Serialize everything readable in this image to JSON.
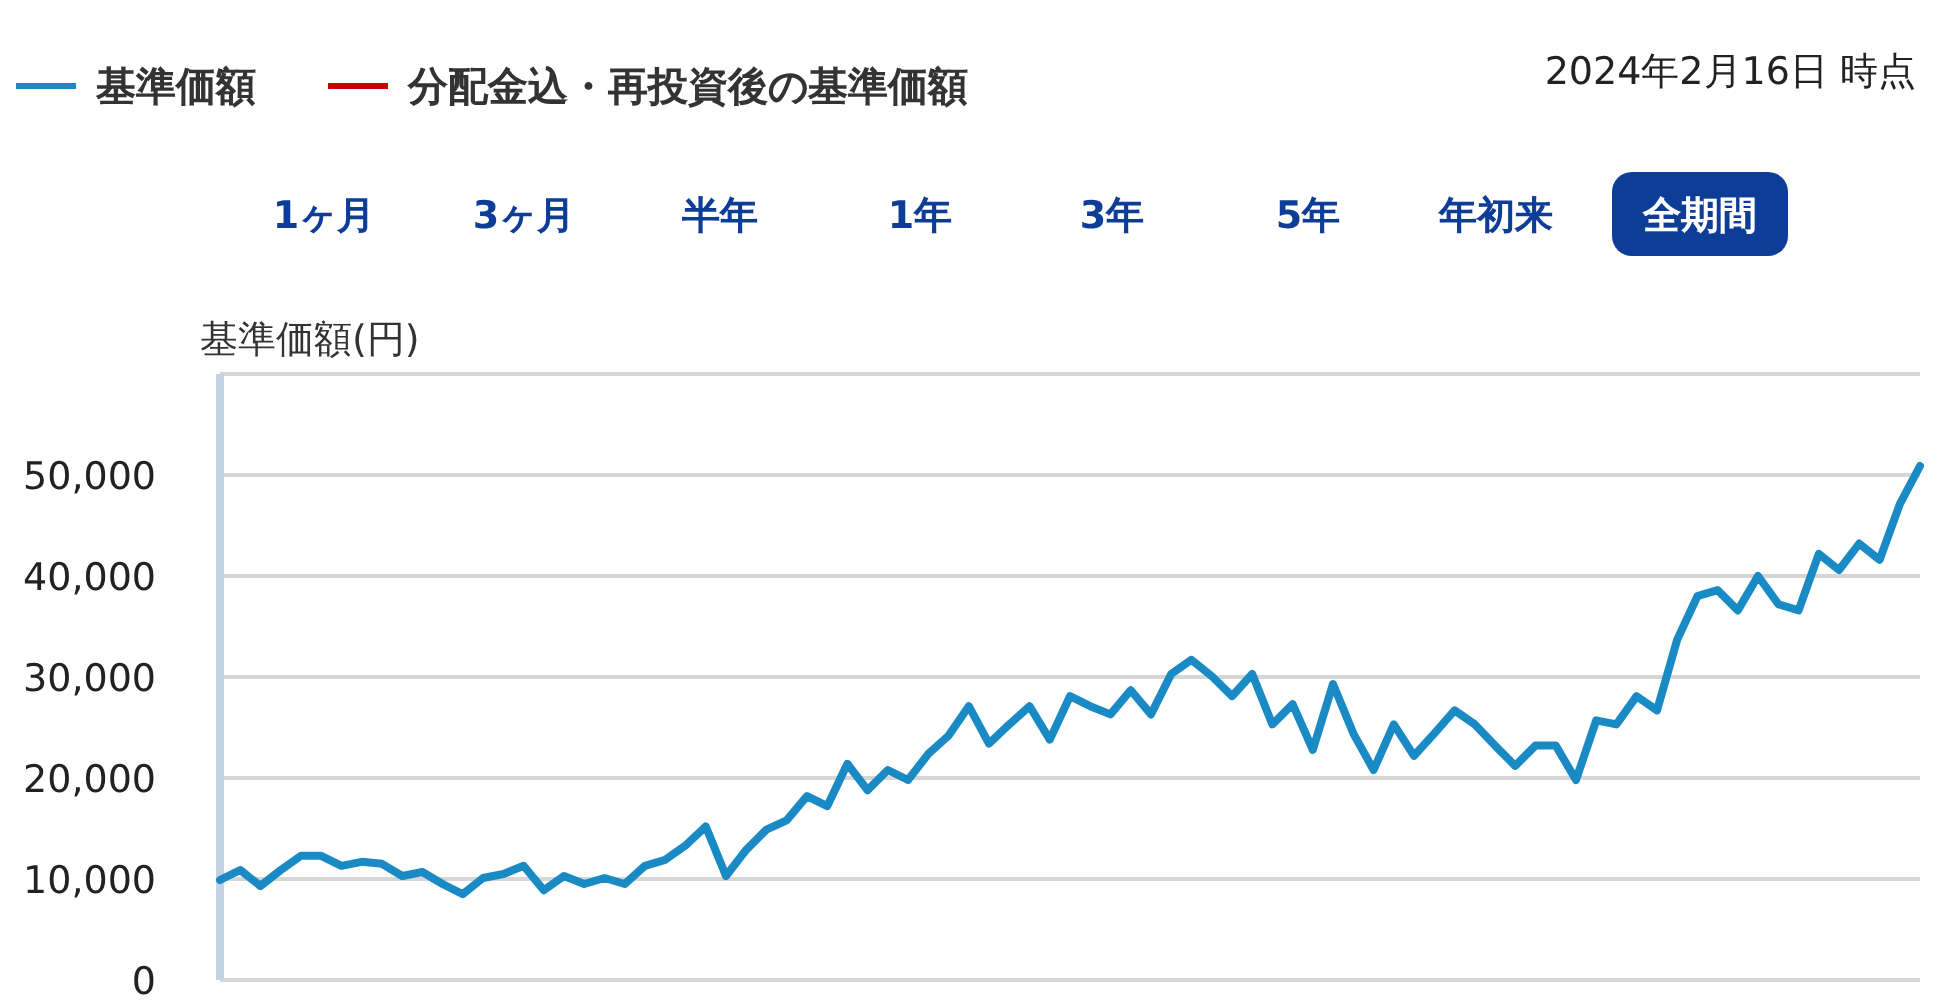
{
  "chart_data": {
    "type": "line",
    "ylabel": "基準価額(円)",
    "categories": [
      null,
      null,
      null,
      null,
      null,
      null,
      null,
      null,
      null,
      null,
      null,
      null,
      null,
      null,
      null,
      null,
      null,
      null,
      null,
      null,
      null,
      null,
      null,
      null,
      null,
      null,
      null,
      null,
      null,
      null,
      null,
      null,
      null,
      null,
      null,
      null,
      null,
      null,
      null,
      null,
      null,
      null,
      null,
      null,
      null,
      null,
      null,
      null,
      null,
      null,
      null,
      null,
      null,
      null,
      null,
      null,
      null,
      null,
      null,
      null,
      null,
      null,
      null,
      null,
      null,
      null,
      null,
      null,
      null,
      null,
      null,
      null,
      null,
      null,
      null,
      null,
      null,
      null,
      null,
      null,
      null,
      null,
      null,
      null,
      null
    ],
    "series": [
      {
        "name": "基準価額",
        "color": "#1a8ac4",
        "values": [
          9900,
          10900,
          9300,
          10900,
          12300,
          12300,
          11300,
          11700,
          11500,
          10300,
          10700,
          9500,
          8500,
          10100,
          10500,
          11300,
          8900,
          10300,
          9500,
          10100,
          9500,
          11300,
          11900,
          13300,
          15200,
          10300,
          12900,
          14900,
          15800,
          18200,
          17200,
          21400,
          18800,
          20800,
          19800,
          22400,
          24200,
          27100,
          23400,
          25300,
          27100,
          23800,
          28100,
          27100,
          26300,
          28700,
          26300,
          30300,
          31700,
          30100,
          28100,
          30300,
          25300,
          27300,
          22800,
          29300,
          24400,
          20800,
          25300,
          22200,
          24400,
          26700,
          25300,
          23200,
          21200,
          23200,
          23200,
          19800,
          25700,
          25300,
          28100,
          26700,
          33700,
          38000,
          38600,
          36600,
          40000,
          37200,
          36600,
          42200,
          40600,
          43200,
          41600,
          47100,
          50900
        ]
      },
      {
        "name": "分配金込・再投資後の基準価額",
        "color": "#cc0000",
        "values": [
          null,
          null,
          null,
          null,
          null,
          null,
          null,
          null,
          null,
          null,
          null,
          null,
          null,
          null,
          null,
          null,
          null,
          null,
          null,
          null,
          null,
          null,
          null,
          null,
          null,
          null,
          null,
          null,
          null,
          null,
          null,
          null,
          null,
          null,
          null,
          null,
          null,
          null,
          null,
          null,
          null,
          null,
          null,
          null,
          null,
          null,
          null,
          null,
          null,
          null,
          null,
          null,
          null,
          null,
          null,
          null,
          null,
          null,
          null,
          null,
          null,
          null,
          null,
          null,
          null,
          null,
          null,
          null,
          null,
          null,
          null,
          null,
          null,
          null,
          null,
          null,
          null,
          null,
          null,
          null,
          null,
          null,
          null,
          null,
          null
        ]
      }
    ],
    "ylim": [
      0,
      60000
    ],
    "yticks": [
      0,
      {
        "value": 10000,
        "label": "10,000"
      },
      {
        "value": 20000,
        "label": "20,000"
      },
      {
        "value": 30000,
        "label": "30,000"
      },
      {
        "value": 40000,
        "label": "40,000"
      },
      {
        "value": 50000,
        "label": "50,000"
      },
      {
        "value": 60000,
        "label": null
      }
    ],
    "grid": "y",
    "legend": "top left",
    "line_style": "solid",
    "marker": "none",
    "annotations": [
      "2024年2月16日 時点",
      "1ヶ月",
      "3ヶ月",
      "半年",
      "1年",
      "3年",
      "5年",
      "年初来",
      "全期間"
    ]
  }
}
